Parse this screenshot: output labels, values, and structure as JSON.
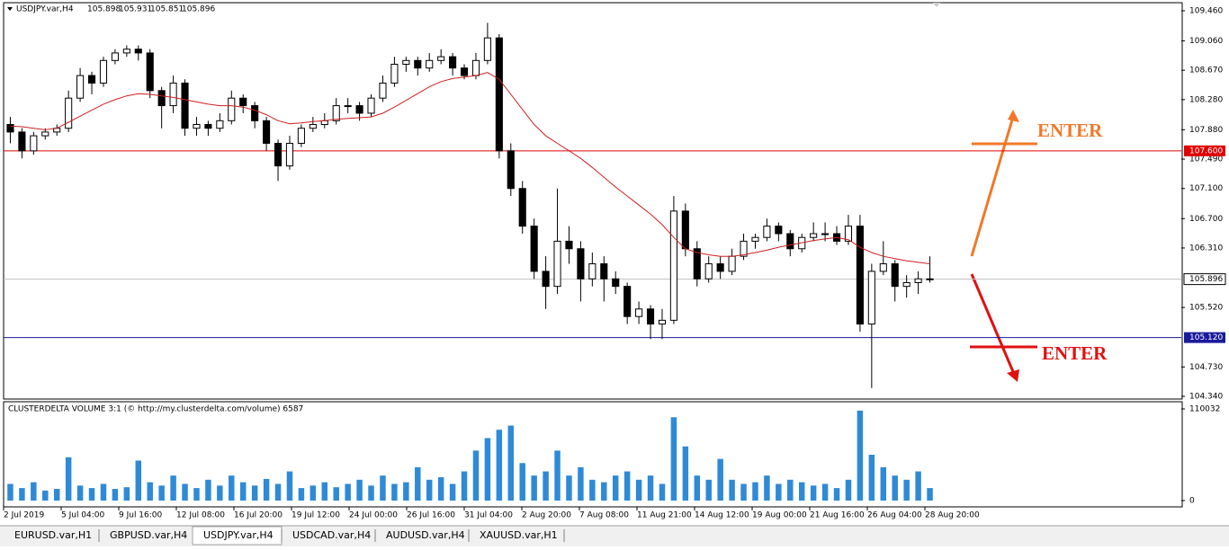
{
  "header": {
    "symbol": "USDJPY.var,H4",
    "prices": [
      105.898,
      105.931,
      105.851,
      105.896
    ]
  },
  "chart": {
    "type": "candlestick",
    "candles": [
      [
        107.95,
        108.05,
        107.7,
        107.85
      ],
      [
        107.85,
        107.9,
        107.5,
        107.6
      ],
      [
        107.6,
        107.85,
        107.55,
        107.8
      ],
      [
        107.8,
        107.9,
        107.75,
        107.85
      ],
      [
        107.85,
        107.95,
        107.8,
        107.9
      ],
      [
        107.9,
        108.4,
        107.85,
        108.3
      ],
      [
        108.3,
        108.7,
        108.25,
        108.6
      ],
      [
        108.6,
        108.65,
        108.35,
        108.5
      ],
      [
        108.5,
        108.85,
        108.45,
        108.8
      ],
      [
        108.8,
        108.95,
        108.75,
        108.9
      ],
      [
        108.9,
        109.0,
        108.85,
        108.95
      ],
      [
        108.95,
        109.0,
        108.8,
        108.9
      ],
      [
        108.9,
        108.95,
        108.3,
        108.4
      ],
      [
        108.4,
        108.45,
        107.9,
        108.2
      ],
      [
        108.2,
        108.6,
        108.1,
        108.5
      ],
      [
        108.5,
        108.55,
        107.8,
        107.9
      ],
      [
        107.9,
        108.05,
        107.8,
        107.95
      ],
      [
        107.95,
        108.0,
        107.8,
        107.9
      ],
      [
        107.9,
        108.1,
        107.85,
        108.0
      ],
      [
        108.0,
        108.4,
        107.95,
        108.3
      ],
      [
        108.3,
        108.35,
        108.1,
        108.2
      ],
      [
        108.2,
        108.25,
        107.9,
        108.0
      ],
      [
        108.0,
        108.05,
        107.6,
        107.7
      ],
      [
        107.7,
        107.75,
        107.2,
        107.4
      ],
      [
        107.4,
        107.8,
        107.35,
        107.7
      ],
      [
        107.7,
        107.95,
        107.65,
        107.9
      ],
      [
        107.9,
        108.05,
        107.85,
        107.95
      ],
      [
        107.95,
        108.1,
        107.9,
        108.0
      ],
      [
        108.0,
        108.3,
        107.95,
        108.2
      ],
      [
        108.2,
        108.3,
        108.1,
        108.2
      ],
      [
        108.2,
        108.25,
        108.0,
        108.1
      ],
      [
        108.1,
        108.35,
        108.05,
        108.3
      ],
      [
        108.3,
        108.6,
        108.25,
        108.5
      ],
      [
        108.5,
        108.85,
        108.45,
        108.75
      ],
      [
        108.75,
        108.85,
        108.65,
        108.8
      ],
      [
        108.8,
        108.85,
        108.6,
        108.7
      ],
      [
        108.7,
        108.9,
        108.65,
        108.8
      ],
      [
        108.8,
        108.95,
        108.75,
        108.85
      ],
      [
        108.85,
        108.9,
        108.6,
        108.7
      ],
      [
        108.7,
        108.75,
        108.55,
        108.6
      ],
      [
        108.6,
        108.9,
        108.55,
        108.8
      ],
      [
        108.8,
        109.3,
        108.75,
        109.1
      ],
      [
        109.1,
        109.15,
        107.5,
        107.6
      ],
      [
        107.6,
        107.7,
        107.0,
        107.1
      ],
      [
        107.1,
        107.2,
        106.5,
        106.6
      ],
      [
        106.6,
        106.7,
        105.9,
        106.0
      ],
      [
        106.0,
        106.2,
        105.5,
        105.8
      ],
      [
        105.8,
        107.1,
        105.7,
        106.4
      ],
      [
        106.4,
        106.6,
        106.1,
        106.3
      ],
      [
        106.3,
        106.4,
        105.6,
        105.9
      ],
      [
        105.9,
        106.25,
        105.8,
        106.1
      ],
      [
        106.1,
        106.2,
        105.6,
        105.9
      ],
      [
        105.9,
        106.0,
        105.7,
        105.8
      ],
      [
        105.8,
        105.85,
        105.3,
        105.4
      ],
      [
        105.4,
        105.6,
        105.3,
        105.5
      ],
      [
        105.5,
        105.55,
        105.1,
        105.3
      ],
      [
        105.3,
        105.5,
        105.1,
        105.35
      ],
      [
        105.35,
        107.0,
        105.3,
        106.8
      ],
      [
        106.8,
        106.9,
        106.2,
        106.3
      ],
      [
        106.3,
        106.4,
        105.8,
        105.9
      ],
      [
        105.9,
        106.2,
        105.85,
        106.1
      ],
      [
        106.1,
        106.2,
        105.9,
        106.0
      ],
      [
        106.0,
        106.3,
        105.95,
        106.2
      ],
      [
        106.2,
        106.5,
        106.15,
        106.4
      ],
      [
        106.4,
        106.5,
        106.3,
        106.45
      ],
      [
        106.45,
        106.7,
        106.4,
        106.6
      ],
      [
        106.6,
        106.65,
        106.4,
        106.5
      ],
      [
        106.5,
        106.55,
        106.2,
        106.3
      ],
      [
        106.3,
        106.5,
        106.25,
        106.45
      ],
      [
        106.45,
        106.65,
        106.4,
        106.5
      ],
      [
        106.5,
        106.65,
        106.4,
        106.5
      ],
      [
        106.5,
        106.6,
        106.35,
        106.4
      ],
      [
        106.4,
        106.75,
        106.35,
        106.6
      ],
      [
        106.6,
        106.75,
        105.2,
        105.3
      ],
      [
        105.3,
        106.1,
        104.45,
        106.0
      ],
      [
        106.0,
        106.4,
        105.95,
        106.1
      ],
      [
        106.1,
        106.15,
        105.6,
        105.8
      ],
      [
        105.8,
        105.95,
        105.65,
        105.85
      ],
      [
        105.85,
        106.0,
        105.7,
        105.9
      ],
      [
        105.9,
        106.2,
        105.85,
        105.896
      ]
    ],
    "ma": [
      107.93,
      107.92,
      107.9,
      107.88,
      107.9,
      107.98,
      108.06,
      108.14,
      108.22,
      108.28,
      108.33,
      108.36,
      108.35,
      108.33,
      108.31,
      108.28,
      108.25,
      108.22,
      108.2,
      108.2,
      108.18,
      108.14,
      108.08,
      108.0,
      107.96,
      107.97,
      107.99,
      108.0,
      108.02,
      108.03,
      108.04,
      108.05,
      108.1,
      108.18,
      108.27,
      108.36,
      108.45,
      108.52,
      108.56,
      108.58,
      108.6,
      108.64,
      108.55,
      108.35,
      108.15,
      107.95,
      107.8,
      107.7,
      107.6,
      107.5,
      107.38,
      107.25,
      107.12,
      107.0,
      106.88,
      106.76,
      106.62,
      106.45,
      106.3,
      106.25,
      106.22,
      106.2,
      106.2,
      106.22,
      106.25,
      106.28,
      106.32,
      106.35,
      106.38,
      106.41,
      106.43,
      106.45,
      106.42,
      106.32,
      106.25,
      106.2,
      106.17,
      106.14,
      106.12,
      106.1
    ],
    "ma_color": "#cc2020",
    "ylim": [
      104.34,
      109.46
    ],
    "yticks": [
      {
        "value": 109.46,
        "label": "109.460"
      },
      {
        "value": 109.06,
        "label": "109.060"
      },
      {
        "value": 108.67,
        "label": "108.670"
      },
      {
        "value": 108.28,
        "label": "108.280"
      },
      {
        "value": 107.88,
        "label": "107.880"
      },
      {
        "value": 107.49,
        "label": "107.490"
      },
      {
        "value": 107.1,
        "label": "107.100"
      },
      {
        "value": 106.7,
        "label": "106.700"
      },
      {
        "value": 106.31,
        "label": "106.310"
      },
      {
        "value": 105.52,
        "label": "105.520"
      },
      {
        "value": 104.73,
        "label": "104.730"
      },
      {
        "value": 104.34,
        "label": "104.340"
      }
    ],
    "levels": [
      {
        "value": 107.6,
        "label": "107.600",
        "color": "#e00000"
      },
      {
        "value": 105.12,
        "label": "105.120",
        "color": "#1a1a9c"
      }
    ],
    "current": {
      "value": 105.896,
      "label": "105.896"
    },
    "xlabels": [
      "2 Jul 2019",
      "5 Jul 04:00",
      "9 Jul 16:00",
      "12 Jul 08:00",
      "16 Jul 20:00",
      "19 Jul 12:00",
      "24 Jul 00:00",
      "26 Jul 16:00",
      "31 Jul 04:00",
      "2 Aug 20:00",
      "7 Aug 08:00",
      "11 Aug 21:00",
      "14 Aug 12:00",
      "19 Aug 00:00",
      "21 Aug 16:00",
      "26 Aug 04:00",
      "28 Aug 20:00"
    ],
    "annotations": [
      {
        "text": "ENTER",
        "color": "#f07828"
      },
      {
        "text": "ENTER",
        "color": "#e01010"
      }
    ]
  },
  "volume": {
    "title": "CLUSTERDELTA VOLUME 3:1 (© http://my.clusterdelta.com/volume) 6587",
    "values": [
      20000,
      15000,
      22000,
      12000,
      14000,
      52000,
      18000,
      15000,
      20000,
      14000,
      16000,
      48000,
      22000,
      18000,
      30000,
      20000,
      15000,
      25000,
      18000,
      30000,
      22000,
      18000,
      26000,
      20000,
      35000,
      15000,
      18000,
      22000,
      16000,
      20000,
      25000,
      18000,
      30000,
      20000,
      22000,
      40000,
      25000,
      28000,
      20000,
      35000,
      60000,
      75000,
      85000,
      90000,
      45000,
      30000,
      35000,
      60000,
      30000,
      40000,
      25000,
      22000,
      30000,
      35000,
      25000,
      30000,
      20000,
      100000,
      65000,
      30000,
      25000,
      50000,
      25000,
      20000,
      22000,
      30000,
      20000,
      25000,
      22000,
      18000,
      20000,
      15000,
      25000,
      108000,
      55000,
      40000,
      30000,
      25000,
      35000,
      15000
    ],
    "color": "#2e8ad6",
    "ylim": [
      0,
      110032
    ],
    "yticks": [
      0,
      110032
    ]
  },
  "tabs": [
    "EURUSD.var,H1",
    "GBPUSD.var,H4",
    "USDJPY.var,H4",
    "USDCAD.var,H4",
    "AUDUSD.var,H4",
    "XAUUSD.var,H1"
  ]
}
